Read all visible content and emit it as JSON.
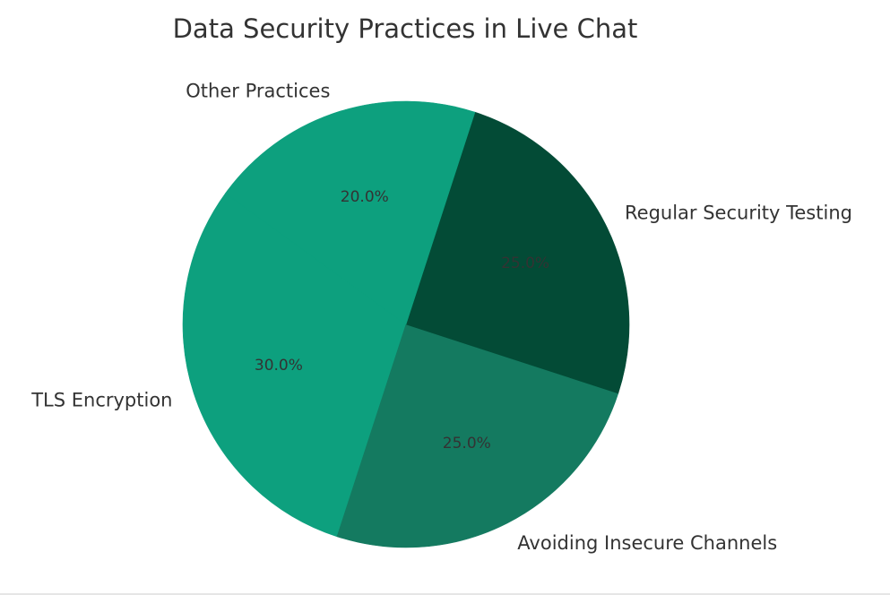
{
  "chart_data": {
    "type": "pie",
    "title": "Data Security Practices in Live Chat",
    "categories": [
      "TLS Encryption",
      "Avoiding Insecure Channels",
      "Regular Security Testing",
      "Other Practices"
    ],
    "values": [
      30,
      25,
      25,
      20
    ],
    "percent_labels": [
      "30.0%",
      "25.0%",
      "25.0%",
      "20.0%"
    ],
    "colors": [
      "#0da07e",
      "#147a60",
      "#034b36",
      "#0da07e"
    ],
    "start_angle_deg": 144,
    "direction": "counterclockwise",
    "legend": "none"
  }
}
